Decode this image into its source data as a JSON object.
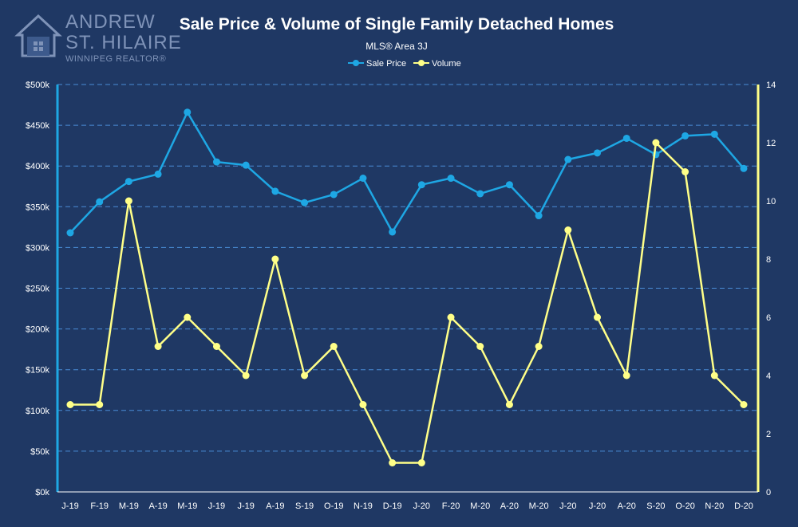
{
  "logo": {
    "line1": "ANDREW",
    "line2": "ST. HILAIRE",
    "line3": "WINNIPEG REALTOR®"
  },
  "chart_data": {
    "type": "line",
    "title": "Sale Price & Volume of Single Family Detached Homes",
    "subtitle": "MLS® Area 3J",
    "categories": [
      "J-19",
      "F-19",
      "M-19",
      "A-19",
      "M-19",
      "J-19",
      "J-19",
      "A-19",
      "S-19",
      "O-19",
      "N-19",
      "D-19",
      "J-20",
      "F-20",
      "M-20",
      "A-20",
      "M-20",
      "J-20",
      "J-20",
      "A-20",
      "S-20",
      "O-20",
      "N-20",
      "D-20"
    ],
    "series": [
      {
        "name": "Sale Price",
        "axis": "left",
        "color": "#1ea7e4",
        "values": [
          318000,
          356000,
          381000,
          390000,
          466000,
          405000,
          401000,
          369000,
          355000,
          365000,
          385000,
          319000,
          377000,
          385000,
          366000,
          377000,
          339000,
          408000,
          416000,
          434000,
          414000,
          437000,
          439000,
          397000
        ]
      },
      {
        "name": "Volume",
        "axis": "right",
        "color": "#ffff88",
        "values": [
          3,
          3,
          10,
          5,
          6,
          5,
          4,
          8,
          4,
          5,
          3,
          1,
          1,
          6,
          5,
          3,
          5,
          9,
          6,
          4,
          12,
          11,
          4,
          3
        ]
      }
    ],
    "left_axis": {
      "min": 0,
      "max": 500000,
      "step": 50000,
      "ticks": [
        "$0k",
        "$50k",
        "$100k",
        "$150k",
        "$200k",
        "$250k",
        "$300k",
        "$350k",
        "$400k",
        "$450k",
        "$500k"
      ]
    },
    "right_axis": {
      "min": 0,
      "max": 14,
      "step": 2,
      "ticks": [
        "0",
        "2",
        "4",
        "6",
        "8",
        "10",
        "12",
        "14"
      ]
    },
    "grid": true,
    "legend_position": "top-center",
    "colors": {
      "background": "#1f3864",
      "grid": "#4a8cd6",
      "left_axis_line": "#1ea7e4",
      "right_axis_line": "#ffff88"
    }
  }
}
